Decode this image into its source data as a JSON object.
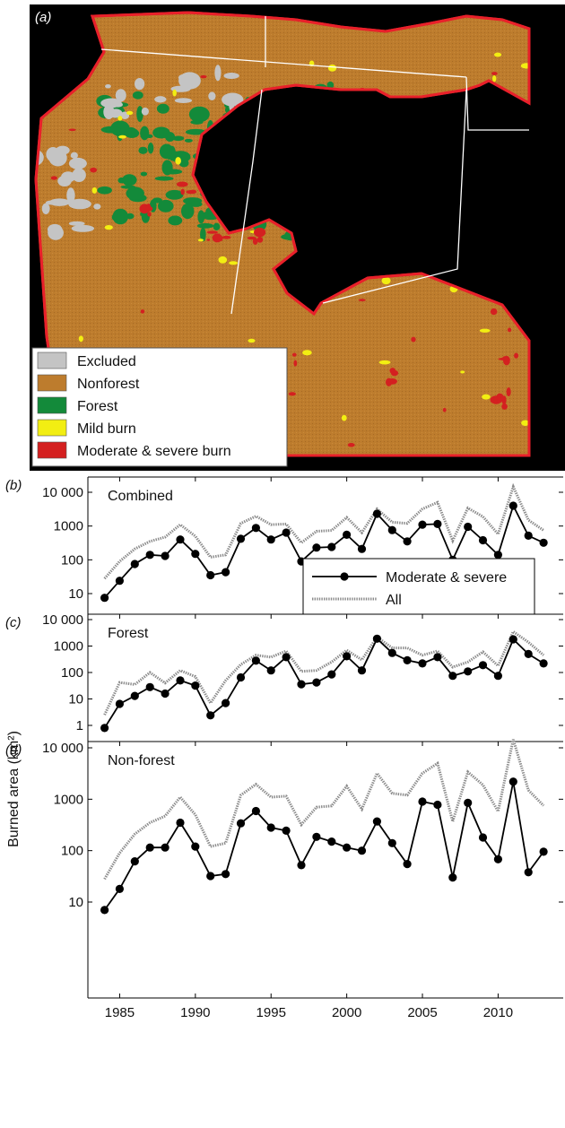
{
  "map_panel": {
    "label": "(a)",
    "legend": [
      {
        "label": "Excluded",
        "color": "#c4c4c4"
      },
      {
        "label": "Nonforest",
        "color": "#bd7c2d"
      },
      {
        "label": "Forest",
        "color": "#138a3a"
      },
      {
        "label": "Mild burn",
        "color": "#f2ee12"
      },
      {
        "label": "Moderate & severe burn",
        "color": "#d42020"
      }
    ],
    "colors": {
      "background": "#000000",
      "border": "#e8202a",
      "state_lines": "#ffffff"
    }
  },
  "y_axis_label": "Burned area (km²)",
  "x_ticks": [
    "1985",
    "1990",
    "1995",
    "2000",
    "2005",
    "2010"
  ],
  "legend": {
    "moderate": "Moderate & severe",
    "all": "All"
  },
  "chart_data": [
    {
      "type": "line",
      "panel": "(b)",
      "title": "Combined",
      "x": [
        1984,
        1985,
        1986,
        1987,
        1988,
        1989,
        1990,
        1991,
        1992,
        1993,
        1994,
        1995,
        1996,
        1997,
        1998,
        1999,
        2000,
        2001,
        2002,
        2003,
        2004,
        2005,
        2006,
        2007,
        2008,
        2009,
        2010,
        2011,
        2012,
        2013
      ],
      "yscale": "log",
      "ylim": [
        2,
        20000
      ],
      "yticks": [
        10,
        100,
        1000,
        10000
      ],
      "ytick_labels": [
        "10",
        "100",
        "1000",
        "10 000"
      ],
      "series": [
        {
          "name": "Moderate & severe",
          "style": "solid-markers",
          "color": "#000000",
          "values": [
            7.5,
            24,
            75,
            140,
            130,
            400,
            150,
            35,
            43,
            420,
            880,
            400,
            640,
            90,
            230,
            240,
            550,
            210,
            2300,
            760,
            350,
            1100,
            1150,
            100,
            950,
            380,
            140,
            4000,
            520,
            320
          ]
        },
        {
          "name": "All",
          "style": "dotted",
          "color": "#8a8a8a",
          "values": [
            28,
            90,
            210,
            350,
            470,
            1100,
            500,
            120,
            140,
            1200,
            1950,
            1100,
            1150,
            320,
            700,
            740,
            1800,
            640,
            3200,
            1300,
            1200,
            3200,
            5000,
            370,
            3400,
            1900,
            580,
            14500,
            1500,
            750
          ]
        }
      ]
    },
    {
      "type": "line",
      "panel": "(c)",
      "title": "Forest",
      "x": [
        1984,
        1985,
        1986,
        1987,
        1988,
        1989,
        1990,
        1991,
        1992,
        1993,
        1994,
        1995,
        1996,
        1997,
        1998,
        1999,
        2000,
        2001,
        2002,
        2003,
        2004,
        2005,
        2006,
        2007,
        2008,
        2009,
        2010,
        2011,
        2012,
        2013
      ],
      "yscale": "log",
      "ylim": [
        0.7,
        10000
      ],
      "yticks": [
        1,
        10,
        100,
        1000,
        10000
      ],
      "ytick_labels": [
        "1",
        "10",
        "100",
        "1000",
        "10 000"
      ],
      "series": [
        {
          "name": "Moderate & severe",
          "style": "solid-markers",
          "color": "#000000",
          "values": [
            0.8,
            6.5,
            13,
            28,
            16,
            50,
            32,
            2.4,
            7,
            65,
            280,
            120,
            380,
            36,
            42,
            85,
            410,
            120,
            1900,
            550,
            290,
            220,
            380,
            75,
            110,
            190,
            75,
            1800,
            500,
            220
          ]
        },
        {
          "name": "All",
          "style": "dotted",
          "color": "#8a8a8a",
          "values": [
            2.5,
            42,
            35,
            100,
            40,
            120,
            70,
            7,
            50,
            200,
            450,
            380,
            650,
            110,
            120,
            250,
            700,
            300,
            2200,
            850,
            850,
            450,
            650,
            160,
            250,
            600,
            180,
            3500,
            1400,
            450
          ]
        }
      ]
    },
    {
      "type": "line",
      "panel": "(d)",
      "title": "Non-forest",
      "x": [
        1984,
        1985,
        1986,
        1987,
        1988,
        1989,
        1990,
        1991,
        1992,
        1993,
        1994,
        1995,
        1996,
        1997,
        1998,
        1999,
        2000,
        2001,
        2002,
        2003,
        2004,
        2005,
        2006,
        2007,
        2008,
        2009,
        2010,
        2011,
        2012,
        2013
      ],
      "yscale": "log",
      "ylim": [
        2,
        10000
      ],
      "yticks": [
        10,
        100,
        1000,
        10000
      ],
      "ytick_labels": [
        "10",
        "100",
        "1000",
        "10 000"
      ],
      "series": [
        {
          "name": "Moderate & severe",
          "style": "solid-markers",
          "color": "#000000",
          "values": [
            7,
            18,
            62,
            115,
            115,
            350,
            120,
            32,
            35,
            340,
            590,
            280,
            245,
            52,
            185,
            150,
            115,
            100,
            370,
            140,
            55,
            900,
            780,
            30,
            850,
            180,
            68,
            2200,
            38,
            95
          ]
        },
        {
          "name": "All",
          "style": "dotted",
          "color": "#8a8a8a",
          "values": [
            28,
            90,
            210,
            350,
            470,
            1100,
            500,
            120,
            140,
            1200,
            1950,
            1100,
            1150,
            320,
            700,
            740,
            1800,
            640,
            3200,
            1300,
            1200,
            3200,
            5000,
            370,
            3400,
            1900,
            580,
            14500,
            1500,
            750
          ]
        }
      ]
    }
  ]
}
